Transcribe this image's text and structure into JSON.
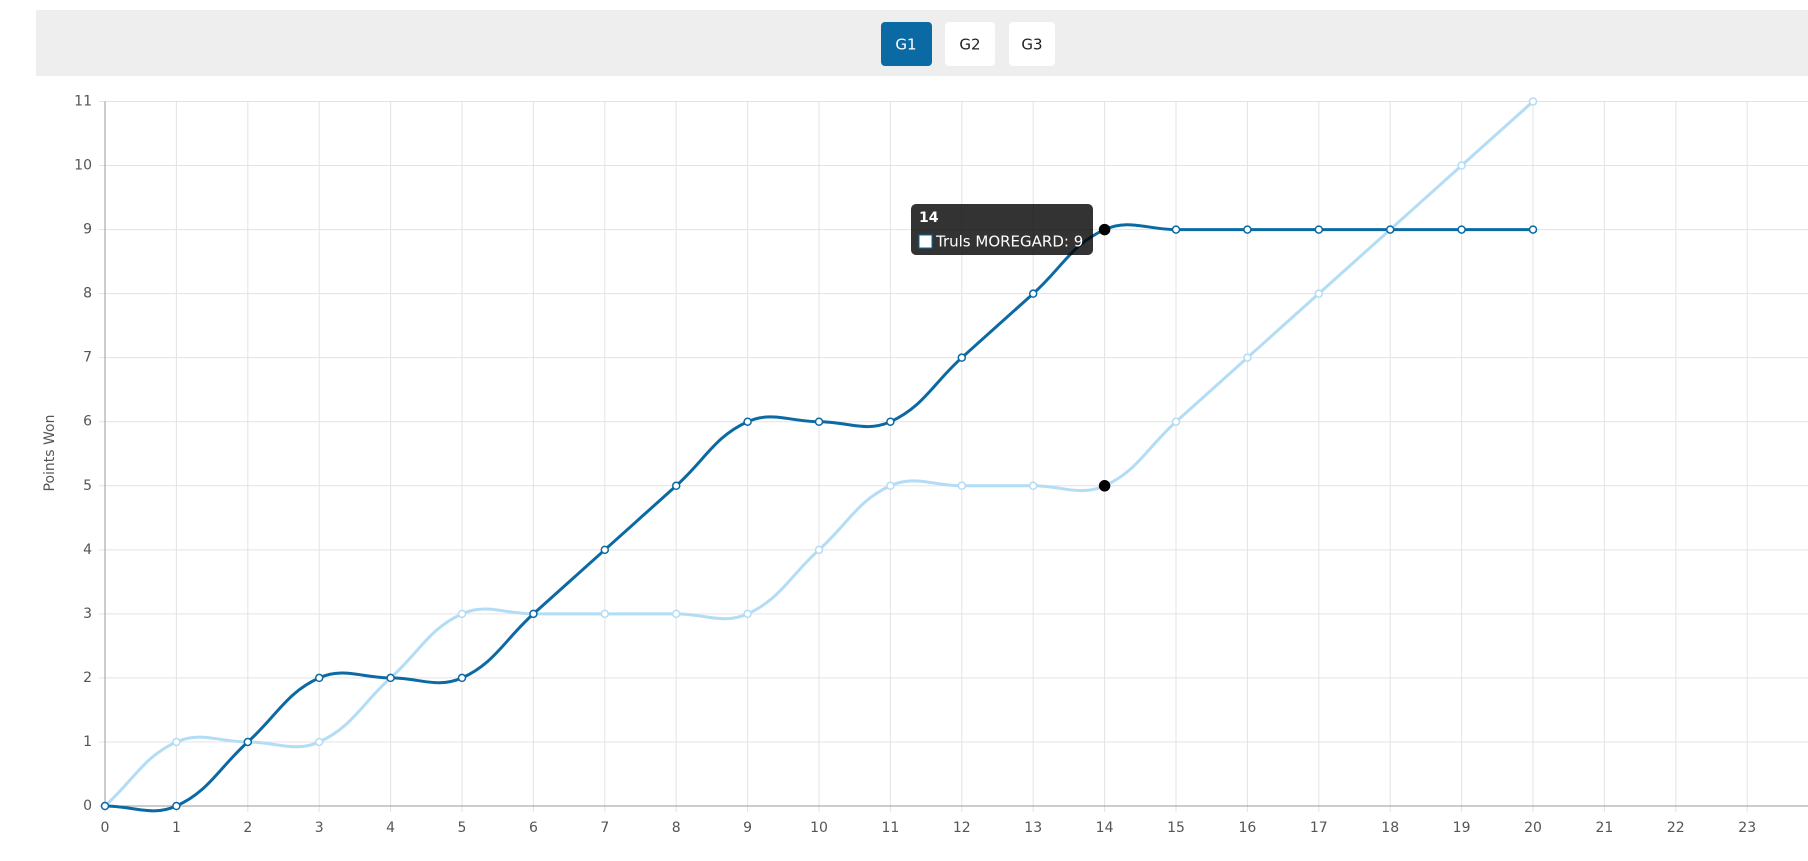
{
  "buttons": [
    "G1",
    "G2",
    "G3"
  ],
  "chart_data": {
    "type": "line",
    "y_label": "Points Won",
    "x": [
      0,
      1,
      2,
      3,
      4,
      5,
      6,
      7,
      8,
      9,
      10,
      11,
      12,
      13,
      14,
      15,
      16,
      17,
      18,
      19,
      20
    ],
    "series": [
      {
        "name": "Truls MOREGARD",
        "color": "#0b69a3",
        "values": [
          0,
          0,
          1,
          2,
          2,
          2,
          3,
          4,
          5,
          6,
          6,
          6,
          7,
          8,
          9,
          9,
          9,
          9,
          9,
          9,
          9
        ]
      },
      {
        "color": "#b3dcf5",
        "values": [
          0,
          1,
          1,
          1,
          2,
          3,
          3,
          3,
          3,
          3,
          4,
          5,
          5,
          5,
          5,
          6,
          7,
          8,
          9,
          10,
          11
        ]
      }
    ],
    "xlim": [
      0,
      24
    ],
    "xticks": [
      0,
      1,
      2,
      3,
      4,
      5,
      6,
      7,
      8,
      9,
      10,
      11,
      12,
      13,
      14,
      15,
      16,
      17,
      18,
      19,
      20,
      21,
      22,
      23
    ],
    "ylim": [
      0,
      11
    ],
    "yticks": [
      0,
      1,
      2,
      3,
      4,
      5,
      6,
      7,
      8,
      9,
      10,
      11
    ],
    "grid": true,
    "highlight_index": 14,
    "tooltip": {
      "title": "14",
      "text": "Truls MOREGARD: 9"
    }
  }
}
